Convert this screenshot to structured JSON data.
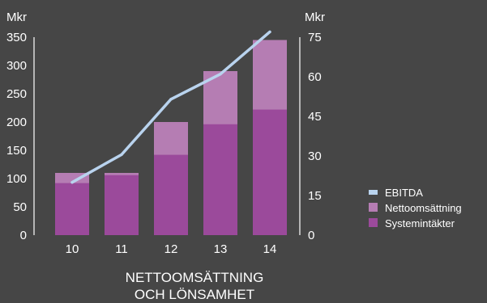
{
  "chart_data": {
    "type": "bar",
    "title_lines": [
      "NETTOOMSÄTTNING",
      "OCH LÖNSAMHET"
    ],
    "left_axis": {
      "unit": "Mkr",
      "ticks": [
        0,
        50,
        100,
        150,
        200,
        250,
        300,
        350
      ],
      "ylim": [
        0,
        350
      ]
    },
    "right_axis": {
      "unit": "Mkr",
      "ticks": [
        0,
        15,
        30,
        45,
        60,
        75
      ],
      "ylim": [
        0,
        75
      ]
    },
    "categories": [
      "10",
      "11",
      "12",
      "13",
      "14"
    ],
    "series": [
      {
        "name": "Systemintäkter",
        "type": "bar",
        "axis": "left",
        "values": [
          92,
          106,
          142,
          196,
          222
        ],
        "color": "#9b4a9b"
      },
      {
        "name": "Nettoomsättning",
        "type": "bar-total",
        "axis": "left",
        "values": [
          110,
          110,
          200,
          290,
          345
        ],
        "color": "#b57db3"
      },
      {
        "name": "EBITDA",
        "type": "line",
        "axis": "right",
        "values": [
          20,
          30.5,
          51.5,
          61,
          77
        ],
        "color": "#b9d3ee"
      }
    ],
    "legend": {
      "position": "right",
      "items": [
        {
          "label": "EBITDA",
          "color": "#b9d3ee"
        },
        {
          "label": "Nettoomsättning",
          "color": "#b57db3"
        },
        {
          "label": "Systemintäkter",
          "color": "#9b4a9b"
        }
      ]
    },
    "grid": false
  }
}
